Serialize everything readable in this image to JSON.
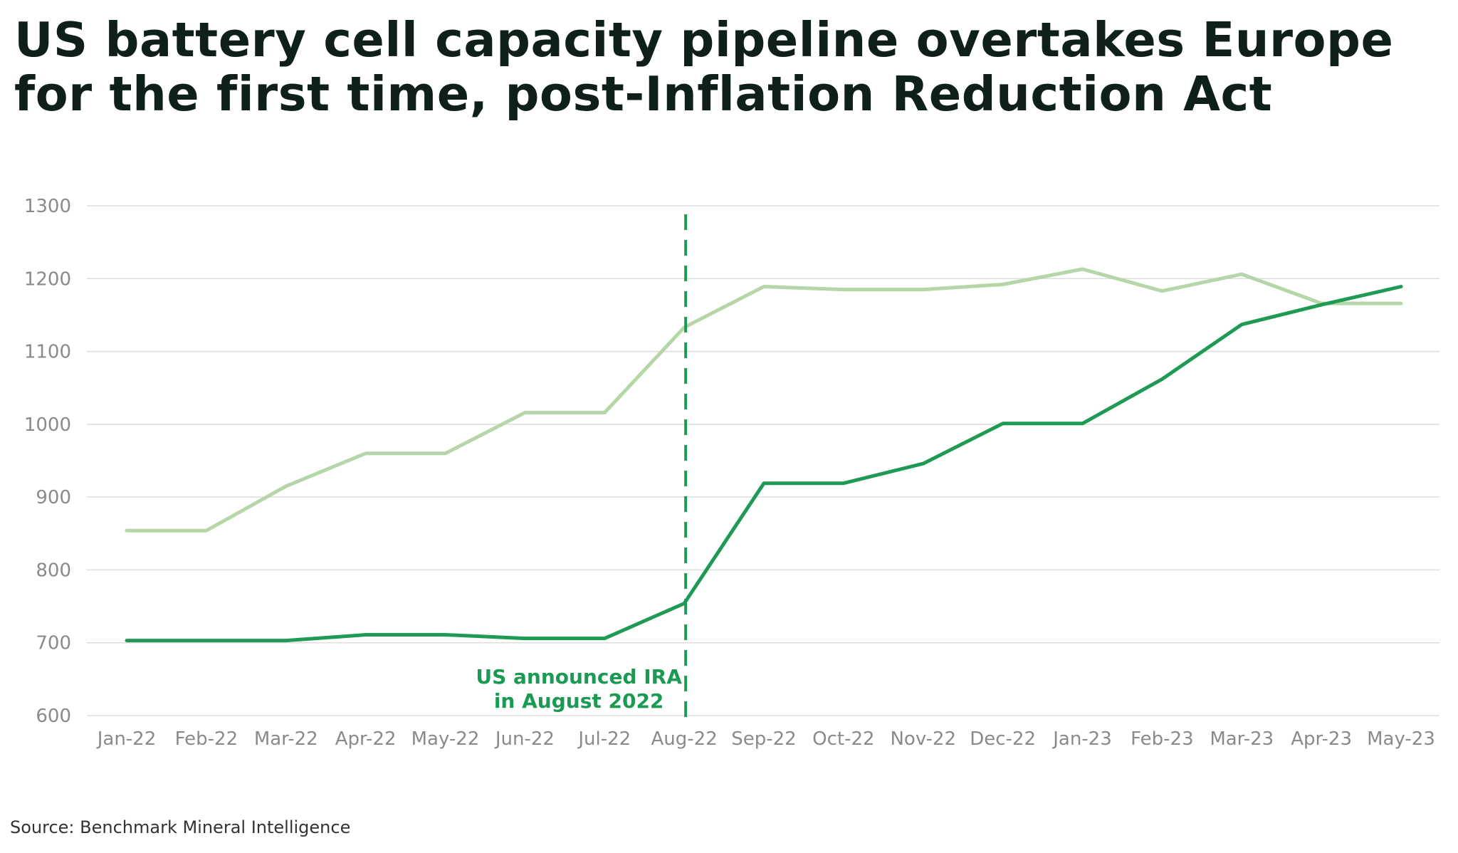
{
  "title": {
    "line1": "US battery cell capacity pipeline overtakes Europe",
    "line2": "for the first time, post-Inflation Reduction Act"
  },
  "source": "Source: Benchmark Mineral Intelligence",
  "chart_data": {
    "type": "line",
    "title": "",
    "xlabel": "",
    "ylabel": "",
    "ylim": [
      600,
      1300
    ],
    "yticks": [
      600,
      700,
      800,
      900,
      1000,
      1100,
      1200,
      1300
    ],
    "grid": true,
    "categories": [
      "Jan-22",
      "Feb-22",
      "Mar-22",
      "Apr-22",
      "May-22",
      "Jun-22",
      "Jul-22",
      "Aug-22",
      "Sep-22",
      "Oct-22",
      "Nov-22",
      "Dec-22",
      "Jan-23",
      "Feb-23",
      "Mar-23",
      "Apr-23",
      "May-23"
    ],
    "series": [
      {
        "color": "#b5d6a7",
        "values": [
          854,
          854,
          915,
          960,
          960,
          1016,
          1016,
          1133,
          1189,
          1185,
          1185,
          1192,
          1213,
          1183,
          1206,
          1166,
          1166
        ]
      },
      {
        "color": "#1e9a55",
        "values": [
          703,
          703,
          703,
          711,
          711,
          706,
          706,
          754,
          919,
          919,
          946,
          1001,
          1001,
          1062,
          1137,
          1164,
          1189
        ]
      }
    ],
    "annotations": [
      {
        "x": "Aug-22",
        "style": "dashed-vertical",
        "color": "#1e9a55",
        "text_lines": [
          "US announced IRA",
          "in August 2022"
        ]
      }
    ]
  }
}
